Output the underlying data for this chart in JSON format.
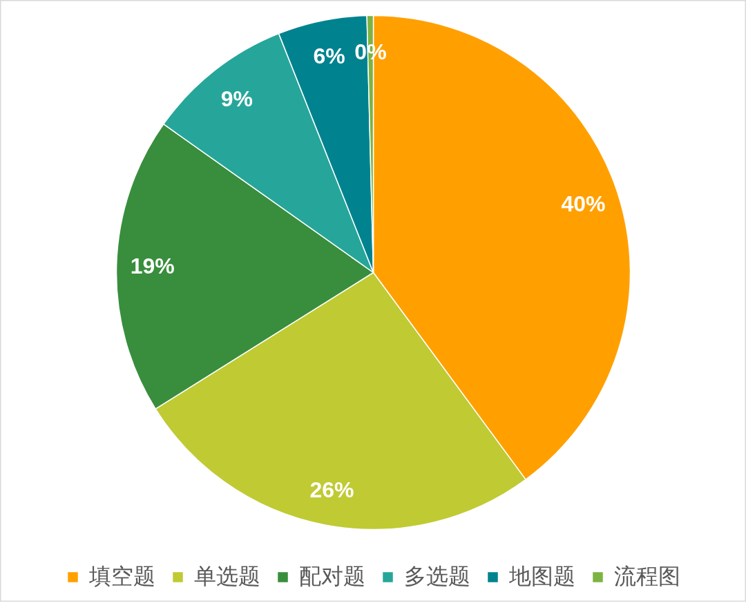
{
  "chart_data": {
    "type": "pie",
    "categories": [
      "填空题",
      "单选题",
      "配对题",
      "多选题",
      "地图题",
      "流程图"
    ],
    "values": [
      39.9,
      26.2,
      18.7,
      9.2,
      5.6,
      0.4
    ],
    "colors": [
      "#ffa000",
      "#c0ca33",
      "#388e3c",
      "#26a69a",
      "#00838f",
      "#7cb342"
    ],
    "value_labels": [
      "40%",
      "26%",
      "19%",
      "9%",
      "6%",
      "0%"
    ],
    "legend": "bottom"
  }
}
